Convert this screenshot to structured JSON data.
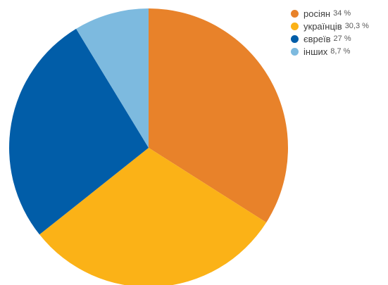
{
  "chart_data": {
    "type": "pie",
    "title": "",
    "legend_position": "top-right",
    "start_angle_deg": 0,
    "direction": "clockwise",
    "slices": [
      {
        "label": "росіян",
        "value_text": "34 %",
        "value": 34,
        "color": "#E8822A"
      },
      {
        "label": "українців",
        "value_text": "30,3 %",
        "value": 30.3,
        "color": "#FBB217"
      },
      {
        "label": "євреїв",
        "value_text": "27 %",
        "value": 27,
        "color": "#015DA8"
      },
      {
        "label": "інших",
        "value_text": "8,7 %",
        "value": 8.7,
        "color": "#7DBADF"
      }
    ]
  }
}
